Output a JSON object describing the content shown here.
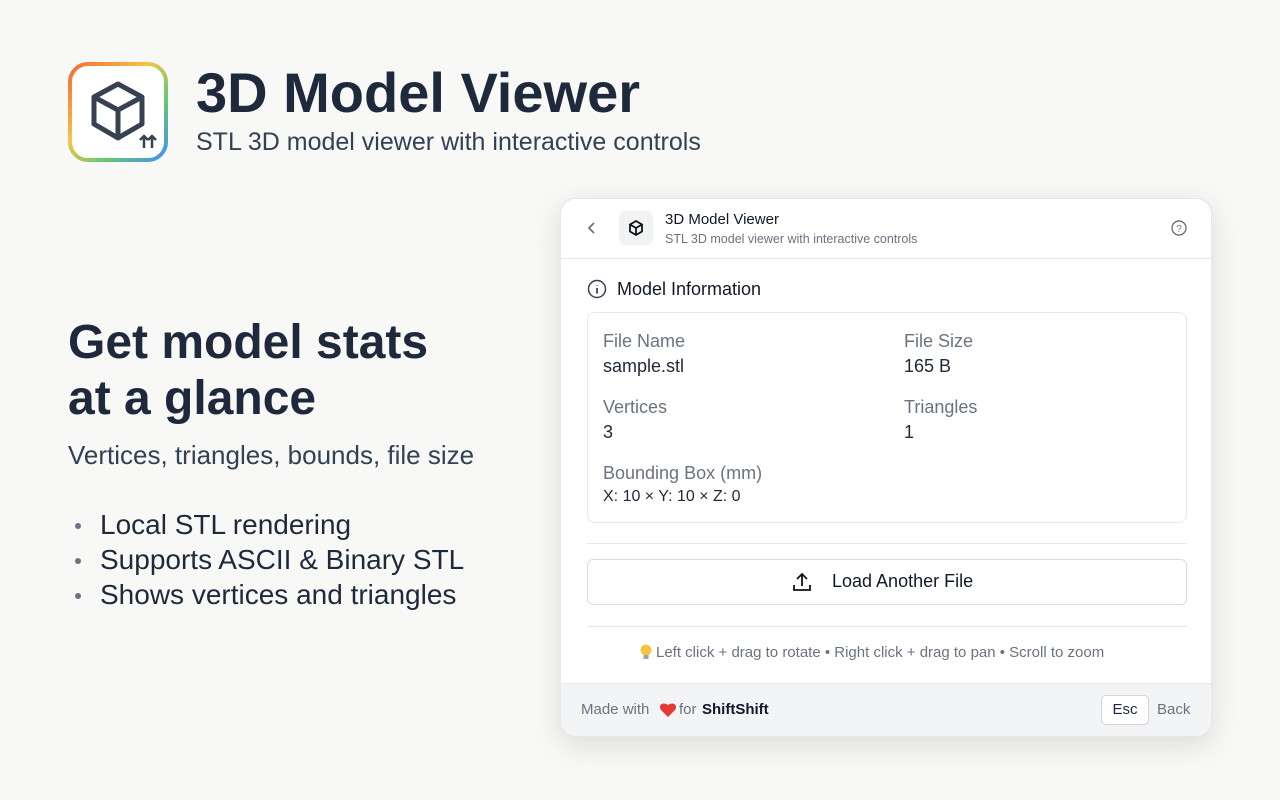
{
  "header": {
    "title": "3D Model Viewer",
    "subtitle": "STL 3D model viewer with interactive controls"
  },
  "promo": {
    "headline": [
      "Get model stats",
      "at a glance"
    ],
    "subhead": "Vertices, triangles, bounds, file size",
    "bullets": [
      "Local STL rendering",
      "Supports ASCII & Binary STL",
      "Shows vertices and triangles"
    ]
  },
  "panel": {
    "title": "3D Model Viewer",
    "subtitle": "STL 3D model viewer with interactive controls",
    "section": "Model Information",
    "fields": [
      {
        "label": "File Name",
        "value": "sample.stl"
      },
      {
        "label": "File Size",
        "value": "165 B"
      },
      {
        "label": "Vertices",
        "value": "3"
      },
      {
        "label": "Triangles",
        "value": "1"
      },
      {
        "label": "Bounding Box (mm)",
        "value": "X: 10 × Y: 10 × Z: 0"
      }
    ],
    "button": "Load Another File",
    "hint": "Left click + drag to rotate • Right click + drag to pan • Scroll to zoom",
    "footer": {
      "made": "Made with",
      "for": "for",
      "brand": "ShiftShift",
      "key": "Esc",
      "back": "Back"
    }
  }
}
